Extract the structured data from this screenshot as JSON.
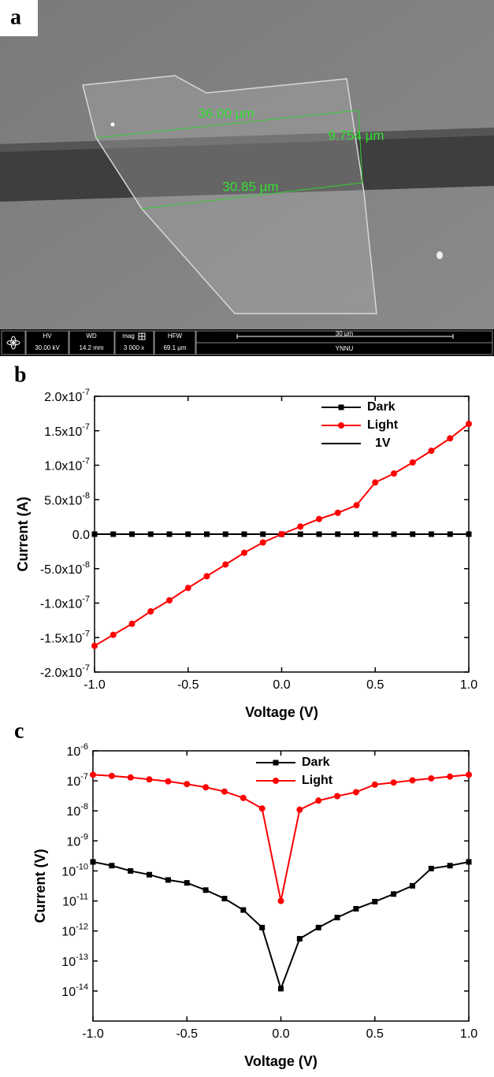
{
  "panel_a": {
    "letter": "a",
    "measurements": [
      "36.00 µm",
      "9.754 µm",
      "30.85 µm"
    ],
    "info_bar": {
      "fields": [
        {
          "label": "HV",
          "value": "30.00 kV"
        },
        {
          "label": "WD",
          "value": "14.2 mm"
        },
        {
          "label": "mag",
          "value": "3 000 x"
        },
        {
          "label": "HFW",
          "value": "69.1 µm"
        }
      ],
      "scale": "30 µm",
      "institution": "YNNU"
    }
  },
  "chart_data": [
    {
      "type": "line",
      "panel": "b",
      "xlabel": "Voltage (V)",
      "ylabel": "Current (A)",
      "x": [
        -1,
        -0.9,
        -0.8,
        -0.7,
        -0.6,
        -0.5,
        -0.4,
        -0.3,
        -0.2,
        -0.1,
        0,
        0.1,
        0.2,
        0.3,
        0.4,
        0.5,
        0.6,
        0.7,
        0.8,
        0.9,
        1
      ],
      "series": [
        {
          "name": "Dark",
          "color": "#000000",
          "marker": "square",
          "values": [
            0,
            0,
            0,
            0,
            0,
            0,
            0,
            0,
            0,
            0,
            0,
            0,
            0,
            0,
            0,
            0,
            0,
            0,
            0,
            0,
            0
          ]
        },
        {
          "name": "Light",
          "color": "#ff0000",
          "marker": "circle",
          "values": [
            -1.62e-07,
            -1.46e-07,
            -1.3e-07,
            -1.12e-07,
            -9.6e-08,
            -7.8e-08,
            -6.1e-08,
            -4.4e-08,
            -2.7e-08,
            -1.2e-08,
            0,
            1.1e-08,
            2.2e-08,
            3.1e-08,
            4.2e-08,
            7.5e-08,
            8.8e-08,
            1.04e-07,
            1.21e-07,
            1.39e-07,
            1.6e-07
          ]
        },
        {
          "name": "1V",
          "color": "#000000",
          "marker": "none",
          "values": [
            null,
            null,
            null,
            null,
            null,
            null,
            null,
            null,
            null,
            null,
            null,
            null,
            null,
            null,
            null,
            null,
            null,
            null,
            null,
            null,
            null
          ]
        }
      ],
      "xlim": [
        -1,
        1
      ],
      "xticks": [
        {
          "value": -1,
          "label": "-1.0"
        },
        -0.5,
        {
          "value": 0,
          "label": "0.0"
        },
        0.5,
        {
          "value": 1,
          "label": "1.0"
        }
      ],
      "ylim": [
        -2e-07,
        2e-07
      ],
      "yticks": [
        {
          "value": 2e-07,
          "label": "2.0x10-7"
        },
        {
          "value": 1.5e-07,
          "label": "1.5x10-7"
        },
        {
          "value": 1e-07,
          "label": "1.0x10-7"
        },
        {
          "value": 5e-08,
          "label": "5.0x10-8"
        },
        {
          "value": 0,
          "label": "0.0"
        },
        {
          "value": -5e-08,
          "label": "-5.0x10-8"
        },
        {
          "value": -1e-07,
          "label": "-1.0x10-7"
        },
        {
          "value": -1.5e-07,
          "label": "-1.5x10-7"
        },
        {
          "value": -2e-07,
          "label": "-2.0x10-7"
        }
      ],
      "log_y": false,
      "grid": false,
      "legend": "upper right"
    },
    {
      "type": "line",
      "panel": "c",
      "xlabel": "Voltage (V)",
      "ylabel": "Current (V)",
      "x": [
        -1,
        -0.9,
        -0.8,
        -0.7,
        -0.6,
        -0.5,
        -0.4,
        -0.3,
        -0.2,
        -0.1,
        0,
        0.1,
        0.2,
        0.3,
        0.4,
        0.5,
        0.6,
        0.7,
        0.8,
        0.9,
        1
      ],
      "series": [
        {
          "name": "Dark",
          "color": "#000000",
          "marker": "square",
          "values": [
            2e-10,
            1.5e-10,
            1e-10,
            7.5e-11,
            5e-11,
            4e-11,
            2.3e-11,
            1.2e-11,
            5e-12,
            1.3e-12,
            1.2e-14,
            5.5e-13,
            1.3e-12,
            2.8e-12,
            5.5e-12,
            9.5e-12,
            1.7e-11,
            3.2e-11,
            1.2e-10,
            1.5e-10,
            2e-10
          ]
        },
        {
          "name": "Light",
          "color": "#ff0000",
          "marker": "circle",
          "values": [
            1.6e-07,
            1.46e-07,
            1.3e-07,
            1.12e-07,
            9.6e-08,
            7.8e-08,
            6.1e-08,
            4.4e-08,
            2.7e-08,
            1.2e-08,
            1e-11,
            1.1e-08,
            2.2e-08,
            3.1e-08,
            4.2e-08,
            7.5e-08,
            8.8e-08,
            1.04e-07,
            1.21e-07,
            1.39e-07,
            1.6e-07
          ]
        }
      ],
      "xlim": [
        -1,
        1
      ],
      "xticks": [
        {
          "value": -1,
          "label": "-1.0"
        },
        -0.5,
        {
          "value": 0,
          "label": "0.0"
        },
        0.5,
        {
          "value": 1,
          "label": "1.0"
        }
      ],
      "ylim": [
        1e-15,
        1e-06
      ],
      "yticks": [
        {
          "value": 1e-06,
          "label": "10-6"
        },
        {
          "value": 1e-07,
          "label": "10-7"
        },
        {
          "value": 1e-08,
          "label": "10-8"
        },
        {
          "value": 1e-09,
          "label": "10-9"
        },
        {
          "value": 1e-10,
          "label": "10-10"
        },
        {
          "value": 1e-11,
          "label": "10-11"
        },
        {
          "value": 1e-12,
          "label": "10-12"
        },
        {
          "value": 1e-13,
          "label": "10-13"
        },
        {
          "value": 1e-14,
          "label": "10-14"
        }
      ],
      "log_y": true,
      "grid": false,
      "legend": "upper center"
    }
  ]
}
